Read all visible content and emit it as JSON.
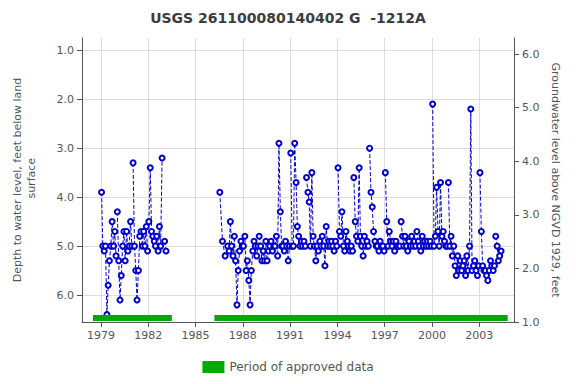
{
  "chart_data": {
    "type": "line",
    "title": "USGS 261100080140402 G  -1212A",
    "ylabel": "Depth to water level, feet below land\n surface",
    "y2label": "Groundwater level above NGVD 1929, feet",
    "xlim": [
      1977.8,
      2005.2
    ],
    "xticks": [
      1979,
      1982,
      1985,
      1988,
      1991,
      1994,
      1997,
      2000,
      2003
    ],
    "ylim": [
      6.55,
      0.75
    ],
    "yticks": [
      {
        "value": 1.0,
        "label": "1.0"
      },
      {
        "value": 2.0,
        "label": "2.0"
      },
      {
        "value": 3.0,
        "label": "3.0"
      },
      {
        "value": 4.0,
        "label": "4.0"
      },
      {
        "value": 5.0,
        "label": "5.0"
      },
      {
        "value": 6.0,
        "label": "6.0"
      }
    ],
    "y2lim": [
      1.0,
      6.3
    ],
    "y2ticks": [
      {
        "value": 1.0,
        "label": "1.0"
      },
      {
        "value": 2.0,
        "label": "2.0"
      },
      {
        "value": 3.0,
        "label": "3.0"
      },
      {
        "value": 4.0,
        "label": "4.0"
      },
      {
        "value": 5.0,
        "label": "5.0"
      },
      {
        "value": 6.0,
        "label": "6.0"
      }
    ],
    "grid": true,
    "legend": "bottom",
    "x": [
      1979.04,
      1979.12,
      1979.21,
      1979.29,
      1979.38,
      1979.46,
      1979.54,
      1979.63,
      1979.71,
      1979.8,
      1979.88,
      1979.96,
      null,
      1980.04,
      1980.13,
      1980.21,
      1980.29,
      1980.38,
      1980.46,
      1980.54,
      1980.63,
      1980.71,
      1980.79,
      1980.88,
      1980.96,
      null,
      1981.04,
      1981.13,
      1981.21,
      1981.29,
      1981.38,
      1981.46,
      1981.54,
      1981.63,
      1981.71,
      1981.79,
      1981.88,
      1981.96,
      null,
      1982.04,
      1982.13,
      1982.21,
      1982.29,
      1982.38,
      1982.46,
      1982.54,
      1982.63,
      1982.71,
      1982.79,
      1982.88,
      null,
      1983.04,
      1983.13,
      null,
      1986.54,
      1986.71,
      1986.88,
      null,
      1987.04,
      1987.13,
      1987.21,
      1987.29,
      1987.38,
      1987.46,
      1987.54,
      1987.63,
      1987.71,
      1987.79,
      1987.88,
      1987.96,
      null,
      1988.04,
      1988.13,
      1988.21,
      1988.29,
      1988.38,
      1988.46,
      1988.54,
      1988.63,
      1988.71,
      1988.79,
      1988.88,
      1988.96,
      null,
      1989.04,
      1989.13,
      1989.21,
      1989.29,
      1989.38,
      1989.46,
      1989.54,
      1989.63,
      1989.71,
      1989.79,
      1989.88,
      1989.96,
      null,
      1990.04,
      1990.13,
      1990.21,
      1990.29,
      1990.38,
      1990.46,
      1990.54,
      1990.63,
      1990.71,
      1990.79,
      1990.88,
      1990.96,
      null,
      1991.04,
      1991.13,
      1991.21,
      1991.29,
      1991.38,
      1991.46,
      1991.54,
      1991.63,
      1991.71,
      1991.79,
      1991.88,
      1991.96,
      null,
      1992.04,
      1992.13,
      1992.21,
      1992.29,
      1992.38,
      1992.46,
      1992.54,
      1992.63,
      1992.71,
      1992.79,
      1992.88,
      1992.96,
      null,
      1993.04,
      1993.13,
      1993.21,
      1993.29,
      1993.38,
      1993.46,
      1993.54,
      1993.63,
      1993.71,
      1993.79,
      1993.88,
      1993.96,
      null,
      1994.04,
      1994.13,
      1994.21,
      1994.29,
      1994.38,
      1994.46,
      1994.54,
      1994.63,
      1994.71,
      1994.79,
      1994.88,
      1994.96,
      null,
      1995.04,
      1995.13,
      1995.21,
      1995.29,
      1995.38,
      1995.46,
      1995.54,
      1995.63,
      1995.71,
      1995.79,
      1995.88,
      1995.96,
      null,
      1996.04,
      1996.13,
      1996.21,
      1996.29,
      1996.38,
      1996.46,
      1996.54,
      1996.63,
      1996.71,
      1996.79,
      1996.88,
      1996.96,
      null,
      1997.04,
      1997.13,
      1997.21,
      1997.29,
      1997.38,
      1997.46,
      1997.54,
      1997.63,
      1997.71,
      1997.79,
      1997.88,
      1997.96,
      null,
      1998.04,
      1998.13,
      1998.21,
      1998.29,
      1998.38,
      1998.46,
      1998.54,
      1998.63,
      1998.71,
      1998.79,
      1998.88,
      1998.96,
      null,
      1999.04,
      1999.13,
      1999.21,
      1999.29,
      1999.38,
      1999.46,
      1999.54,
      1999.63,
      1999.71,
      1999.79,
      1999.88,
      1999.96,
      null,
      2000.04,
      2000.13,
      2000.21,
      2000.29,
      2000.38,
      2000.46,
      2000.54,
      2000.63,
      2000.71,
      2000.79,
      2000.88,
      2000.96,
      null,
      2001.04,
      2001.13,
      2001.21,
      2001.29,
      2001.38,
      2001.46,
      2001.54,
      2001.63,
      2001.71,
      2001.79,
      2001.88,
      2001.96,
      null,
      2002.04,
      2002.13,
      2002.21,
      2002.29,
      2002.38,
      2002.46,
      2002.54,
      2002.63,
      2002.71,
      2002.79,
      2002.88,
      2002.96,
      null,
      2003.04,
      2003.13,
      2003.21,
      2003.29,
      2003.38,
      2003.46,
      2003.54,
      2003.63,
      2003.71,
      2003.79,
      2003.88,
      2003.96,
      null,
      2004.04,
      2004.13,
      2004.21,
      2004.29,
      2004.38
    ],
    "series": [
      {
        "color": "#0000CC",
        "marker": "circle",
        "line_style": "dashed",
        "values": [
          3.9,
          5.0,
          5.1,
          5.0,
          6.4,
          5.8,
          5.3,
          5.0,
          4.5,
          5.0,
          4.7,
          5.2,
          null,
          4.3,
          5.3,
          6.1,
          5.6,
          5.0,
          4.7,
          5.3,
          4.7,
          5.1,
          5.0,
          4.5,
          5.0,
          null,
          3.3,
          5.0,
          5.5,
          6.1,
          5.5,
          4.8,
          4.7,
          5.0,
          4.7,
          5.0,
          4.6,
          5.1,
          null,
          4.5,
          3.4,
          4.7,
          4.8,
          4.9,
          5.0,
          4.8,
          5.1,
          4.6,
          5.0,
          3.2,
          null,
          4.9,
          5.1,
          null,
          3.9,
          4.9,
          5.2,
          null,
          5.0,
          5.1,
          4.5,
          5.0,
          5.2,
          4.8,
          5.3,
          6.2,
          5.5,
          5.1,
          4.9,
          5.0,
          null,
          5.0,
          4.8,
          5.5,
          5.3,
          5.7,
          6.2,
          5.5,
          5.1,
          4.9,
          5.0,
          5.2,
          5.0,
          null,
          4.8,
          5.0,
          5.3,
          5.1,
          5.3,
          4.9,
          5.3,
          5.1,
          5.0,
          4.9,
          5.1,
          5.0,
          null,
          5.0,
          4.8,
          5.2,
          2.9,
          4.3,
          5.0,
          5.0,
          5.1,
          4.9,
          5.0,
          5.3,
          5.0,
          null,
          3.1,
          5.0,
          5.0,
          2.9,
          3.7,
          4.6,
          4.8,
          5.0,
          4.9,
          5.0,
          4.9,
          5.0,
          null,
          3.6,
          3.9,
          4.1,
          5.0,
          3.5,
          4.8,
          5.0,
          5.3,
          5.0,
          5.1,
          4.9,
          5.0,
          null,
          4.8,
          5.0,
          5.4,
          4.6,
          5.0,
          4.9,
          5.0,
          4.9,
          5.0,
          5.1,
          4.9,
          5.0,
          null,
          3.4,
          4.7,
          4.8,
          4.3,
          5.0,
          5.1,
          4.7,
          4.9,
          5.0,
          5.1,
          5.0,
          5.1,
          null,
          3.6,
          4.5,
          4.8,
          4.9,
          3.4,
          4.8,
          5.0,
          5.2,
          4.8,
          5.0,
          4.9,
          5.0,
          null,
          3.0,
          3.9,
          4.2,
          4.7,
          4.9,
          5.0,
          5.0,
          5.1,
          4.9,
          5.0,
          5.0,
          5.1,
          null,
          3.5,
          4.5,
          5.0,
          4.7,
          4.9,
          5.0,
          4.9,
          5.1,
          4.9,
          5.0,
          5.0,
          5.0,
          null,
          4.5,
          4.8,
          5.0,
          4.8,
          5.0,
          5.1,
          4.9,
          5.0,
          4.8,
          5.0,
          4.9,
          5.0,
          null,
          4.7,
          4.9,
          5.0,
          5.1,
          4.8,
          5.0,
          4.9,
          5.0,
          4.9,
          5.0,
          4.9,
          5.0,
          null,
          2.1,
          5.0,
          4.8,
          3.8,
          4.7,
          5.0,
          3.7,
          4.8,
          4.7,
          4.9,
          5.0,
          5.0,
          null,
          3.7,
          5.0,
          4.8,
          5.2,
          5.0,
          5.4,
          5.6,
          5.2,
          5.5,
          5.3,
          5.5,
          5.4,
          null,
          5.3,
          5.6,
          5.2,
          5.5,
          5.0,
          2.2,
          5.5,
          5.4,
          5.3,
          5.5,
          5.6,
          5.4,
          null,
          3.5,
          4.7,
          5.4,
          5.5,
          5.5,
          5.6,
          5.7,
          5.5,
          5.3,
          5.4,
          5.5,
          5.4,
          null,
          4.8,
          5.0,
          5.3,
          5.2,
          5.1
        ]
      },
      {
        "name": "Period of approved data",
        "type": "range",
        "color": "#00AA00",
        "segments": [
          [
            1978.5,
            1983.5
          ],
          [
            1986.2,
            2004.8
          ]
        ],
        "y": 6.47
      }
    ]
  }
}
